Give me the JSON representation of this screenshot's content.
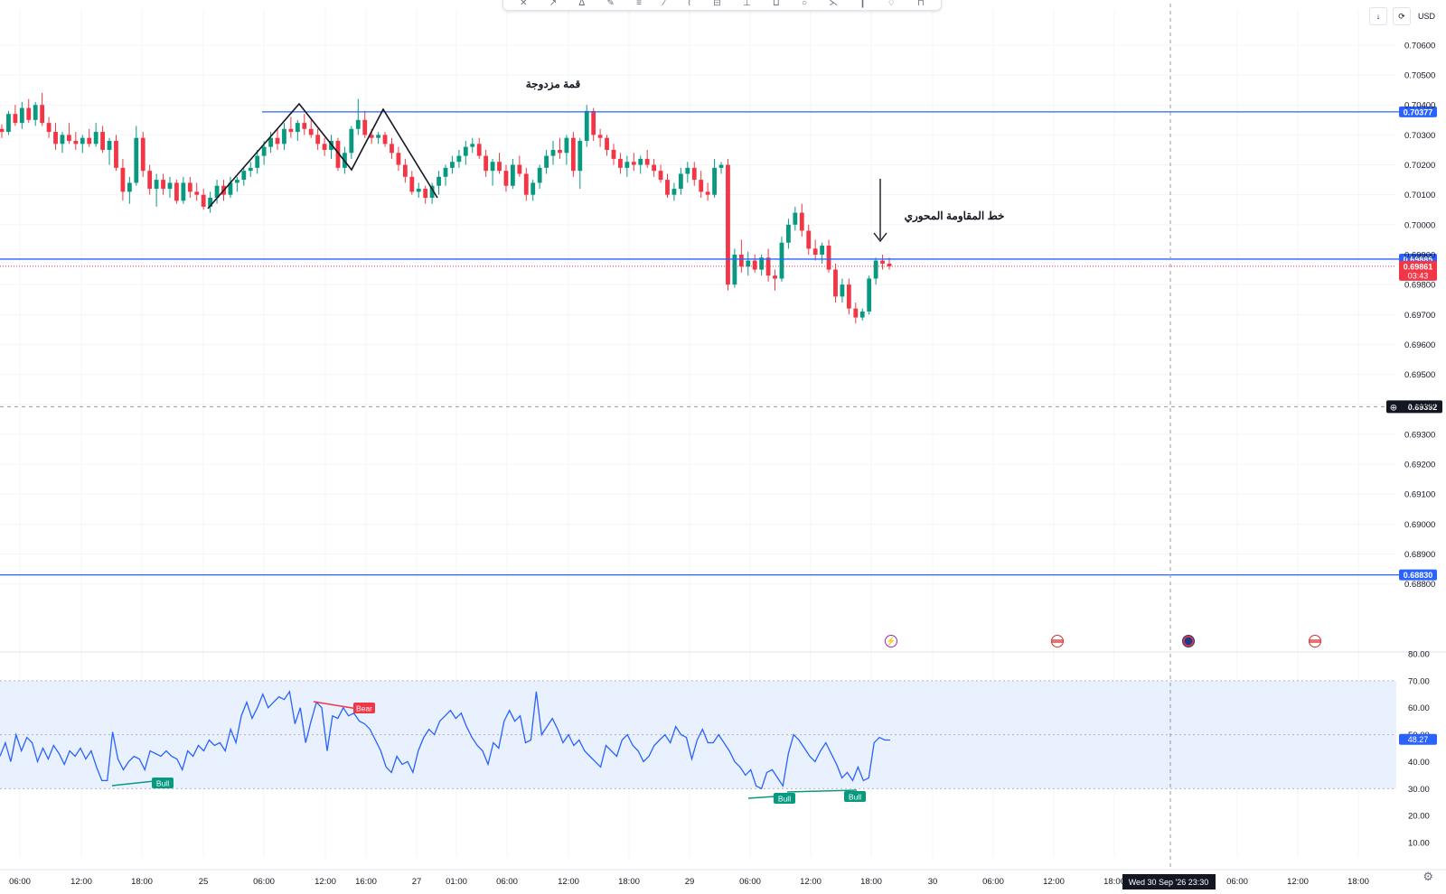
{
  "toolbar": {
    "tools": [
      "✕",
      "↗",
      "ᐃ",
      "✎",
      "≡",
      "⁄",
      "⌇",
      "⊟",
      "⊥",
      "⊔",
      "○",
      "⋋",
      "┃",
      "♢",
      "⊓"
    ]
  },
  "corner": {
    "download_label": "↓",
    "sync_label": "⟳",
    "currency_label": "USD"
  },
  "chart_data": {
    "type": "candlestick",
    "price_axis": {
      "ticks": [
        "0.70600",
        "0.70500",
        "0.70400",
        "0.70300",
        "0.70200",
        "0.70100",
        "0.70000",
        "0.69900",
        "0.69800",
        "0.69700",
        "0.69600",
        "0.69500",
        "0.69400",
        "0.69300",
        "0.69200",
        "0.69100",
        "0.69000",
        "0.68900",
        "0.68800"
      ],
      "ylim": [
        0.6877,
        0.7063
      ]
    },
    "time_axis": {
      "labels": [
        "06:00",
        "12:00",
        "18:00",
        "25",
        "06:00",
        "12:00",
        "16:00",
        "27",
        "01:00",
        "06:00",
        "12:00",
        "18:00",
        "29",
        "06:00",
        "12:00",
        "18:00",
        "30",
        "06:00",
        "12:00",
        "18:00",
        "06:00",
        "12:00",
        "18:00"
      ],
      "crosshair_label": "Wed 30 Sep '26   23:30"
    },
    "horizontal_lines": [
      {
        "price": 0.70377,
        "label": "0.70377",
        "color": "#2962ff"
      },
      {
        "price": 0.69885,
        "label": "0.69885",
        "color": "#2962ff"
      },
      {
        "price": 0.6883,
        "label": "0.68830",
        "color": "#2962ff"
      }
    ],
    "last_price": {
      "price": 0.69861,
      "label": "0.69861",
      "countdown": "03:43",
      "color": "#f23645"
    },
    "crosshair_price": {
      "price": 0.69392,
      "label": "0.69392"
    },
    "annotations": {
      "double_top": "قمة مزدوجة",
      "pivot_resistance": "خط المقاومة المحوري"
    },
    "candles": [
      [
        0.7032,
        0.70335,
        0.7029,
        0.7031
      ],
      [
        0.7031,
        0.7038,
        0.703,
        0.7037
      ],
      [
        0.7037,
        0.704,
        0.7033,
        0.7034
      ],
      [
        0.7034,
        0.7041,
        0.7032,
        0.7039
      ],
      [
        0.7039,
        0.7042,
        0.7034,
        0.7035
      ],
      [
        0.7035,
        0.7041,
        0.7033,
        0.704
      ],
      [
        0.704,
        0.7044,
        0.7033,
        0.7034
      ],
      [
        0.7034,
        0.7036,
        0.7029,
        0.7031
      ],
      [
        0.7031,
        0.7034,
        0.7025,
        0.7027
      ],
      [
        0.7027,
        0.7031,
        0.7024,
        0.703
      ],
      [
        0.703,
        0.7034,
        0.7027,
        0.7028
      ],
      [
        0.7028,
        0.7031,
        0.7025,
        0.7027
      ],
      [
        0.7027,
        0.703,
        0.7024,
        0.7029
      ],
      [
        0.7029,
        0.7032,
        0.7026,
        0.7027
      ],
      [
        0.7027,
        0.7034,
        0.7026,
        0.7031
      ],
      [
        0.7031,
        0.7033,
        0.7024,
        0.7025
      ],
      [
        0.7025,
        0.7029,
        0.702,
        0.7028
      ],
      [
        0.7028,
        0.703,
        0.7018,
        0.7019
      ],
      [
        0.7019,
        0.7022,
        0.7008,
        0.7011
      ],
      [
        0.7011,
        0.7016,
        0.7007,
        0.7014
      ],
      [
        0.7014,
        0.7033,
        0.7013,
        0.7029
      ],
      [
        0.7029,
        0.7031,
        0.7016,
        0.7018
      ],
      [
        0.7018,
        0.702,
        0.701,
        0.7012
      ],
      [
        0.7012,
        0.7017,
        0.7006,
        0.7015
      ],
      [
        0.7015,
        0.7017,
        0.701,
        0.7012
      ],
      [
        0.7012,
        0.7016,
        0.7009,
        0.7014
      ],
      [
        0.7014,
        0.7015,
        0.7007,
        0.7008
      ],
      [
        0.7008,
        0.7016,
        0.7007,
        0.7014
      ],
      [
        0.7014,
        0.7016,
        0.7009,
        0.7011
      ],
      [
        0.7011,
        0.7014,
        0.7008,
        0.701
      ],
      [
        0.701,
        0.7012,
        0.7005,
        0.7006
      ],
      [
        0.7006,
        0.7011,
        0.7004,
        0.7009
      ],
      [
        0.7009,
        0.7015,
        0.7007,
        0.7013
      ],
      [
        0.7013,
        0.7015,
        0.7008,
        0.701
      ],
      [
        0.701,
        0.7016,
        0.7009,
        0.7014
      ],
      [
        0.7014,
        0.7016,
        0.7011,
        0.7015
      ],
      [
        0.7015,
        0.7019,
        0.7013,
        0.7018
      ],
      [
        0.7018,
        0.7021,
        0.7016,
        0.7019
      ],
      [
        0.7019,
        0.7025,
        0.7017,
        0.7023
      ],
      [
        0.7023,
        0.7028,
        0.702,
        0.7026
      ],
      [
        0.7026,
        0.7031,
        0.7024,
        0.7029
      ],
      [
        0.7029,
        0.7032,
        0.7025,
        0.7027
      ],
      [
        0.7027,
        0.7034,
        0.7025,
        0.7032
      ],
      [
        0.7032,
        0.7036,
        0.7029,
        0.7031
      ],
      [
        0.7031,
        0.7035,
        0.7028,
        0.7034
      ],
      [
        0.7034,
        0.7037,
        0.703,
        0.7032
      ],
      [
        0.7032,
        0.7035,
        0.7029,
        0.703
      ],
      [
        0.703,
        0.7032,
        0.7025,
        0.7027
      ],
      [
        0.7027,
        0.7029,
        0.7023,
        0.7025
      ],
      [
        0.7025,
        0.703,
        0.7022,
        0.7028
      ],
      [
        0.7028,
        0.7029,
        0.7018,
        0.7019
      ],
      [
        0.7019,
        0.7026,
        0.7017,
        0.7024
      ],
      [
        0.7024,
        0.7033,
        0.7022,
        0.7032
      ],
      [
        0.7032,
        0.7042,
        0.703,
        0.7035
      ],
      [
        0.7035,
        0.7038,
        0.7029,
        0.703
      ],
      [
        0.703,
        0.7032,
        0.7027,
        0.7029
      ],
      [
        0.7029,
        0.7031,
        0.7027,
        0.703
      ],
      [
        0.703,
        0.7031,
        0.7026,
        0.7027
      ],
      [
        0.7027,
        0.7029,
        0.7022,
        0.7024
      ],
      [
        0.7024,
        0.7026,
        0.7018,
        0.702
      ],
      [
        0.702,
        0.7022,
        0.7014,
        0.7016
      ],
      [
        0.7016,
        0.7018,
        0.701,
        0.7011
      ],
      [
        0.7011,
        0.7014,
        0.7009,
        0.7012
      ],
      [
        0.7012,
        0.7013,
        0.7007,
        0.7009
      ],
      [
        0.7009,
        0.7014,
        0.7007,
        0.7013
      ],
      [
        0.7013,
        0.7018,
        0.701,
        0.7016
      ],
      [
        0.7016,
        0.702,
        0.7013,
        0.7019
      ],
      [
        0.7019,
        0.7023,
        0.7017,
        0.7021
      ],
      [
        0.7021,
        0.7025,
        0.7019,
        0.7023
      ],
      [
        0.7023,
        0.7028,
        0.702,
        0.7026
      ],
      [
        0.7026,
        0.7029,
        0.7024,
        0.7027
      ],
      [
        0.7027,
        0.7029,
        0.7022,
        0.7023
      ],
      [
        0.7023,
        0.7025,
        0.7016,
        0.7018
      ],
      [
        0.7018,
        0.7022,
        0.7013,
        0.7021
      ],
      [
        0.7021,
        0.7024,
        0.7017,
        0.7018
      ],
      [
        0.7018,
        0.702,
        0.7011,
        0.7013
      ],
      [
        0.7013,
        0.7022,
        0.7012,
        0.702
      ],
      [
        0.702,
        0.7023,
        0.7016,
        0.7017
      ],
      [
        0.7017,
        0.7019,
        0.7008,
        0.701
      ],
      [
        0.701,
        0.7015,
        0.7008,
        0.7014
      ],
      [
        0.7014,
        0.702,
        0.7012,
        0.7019
      ],
      [
        0.7019,
        0.7025,
        0.7017,
        0.7023
      ],
      [
        0.7023,
        0.7028,
        0.702,
        0.7025
      ],
      [
        0.7025,
        0.7029,
        0.7022,
        0.7024
      ],
      [
        0.7024,
        0.703,
        0.702,
        0.7029
      ],
      [
        0.7029,
        0.7031,
        0.7016,
        0.7018
      ],
      [
        0.7018,
        0.7029,
        0.7012,
        0.7028
      ],
      [
        0.7028,
        0.704,
        0.7026,
        0.7038
      ],
      [
        0.7038,
        0.7039,
        0.7028,
        0.703
      ],
      [
        0.703,
        0.7032,
        0.7026,
        0.7029
      ],
      [
        0.7029,
        0.703,
        0.7023,
        0.7025
      ],
      [
        0.7025,
        0.7027,
        0.702,
        0.7022
      ],
      [
        0.7022,
        0.7024,
        0.7017,
        0.7019
      ],
      [
        0.7019,
        0.7023,
        0.7016,
        0.7021
      ],
      [
        0.7021,
        0.7024,
        0.7018,
        0.702
      ],
      [
        0.702,
        0.7023,
        0.7017,
        0.7022
      ],
      [
        0.7022,
        0.7025,
        0.7019,
        0.702
      ],
      [
        0.702,
        0.7022,
        0.7016,
        0.7018
      ],
      [
        0.7018,
        0.702,
        0.7014,
        0.7015
      ],
      [
        0.7015,
        0.7017,
        0.7009,
        0.701
      ],
      [
        0.701,
        0.7014,
        0.7008,
        0.7012
      ],
      [
        0.7012,
        0.7019,
        0.701,
        0.7017
      ],
      [
        0.7017,
        0.7021,
        0.7014,
        0.7019
      ],
      [
        0.7019,
        0.7021,
        0.7013,
        0.7015
      ],
      [
        0.7015,
        0.7018,
        0.7009,
        0.7011
      ],
      [
        0.7011,
        0.7014,
        0.7008,
        0.701
      ],
      [
        0.701,
        0.7022,
        0.7009,
        0.7019
      ],
      [
        0.7019,
        0.7021,
        0.7017,
        0.702
      ],
      [
        0.702,
        0.7022,
        0.6978,
        0.698
      ],
      [
        0.698,
        0.6992,
        0.6979,
        0.699
      ],
      [
        0.699,
        0.6995,
        0.6984,
        0.6986
      ],
      [
        0.6986,
        0.6991,
        0.6983,
        0.6988
      ],
      [
        0.6988,
        0.699,
        0.6984,
        0.6985
      ],
      [
        0.6985,
        0.699,
        0.6983,
        0.6989
      ],
      [
        0.6989,
        0.6992,
        0.6981,
        0.6983
      ],
      [
        0.6983,
        0.6985,
        0.6978,
        0.6982
      ],
      [
        0.6982,
        0.6996,
        0.6981,
        0.6994
      ],
      [
        0.6994,
        0.7002,
        0.6992,
        0.7
      ],
      [
        0.7,
        0.7006,
        0.6998,
        0.7004
      ],
      [
        0.7004,
        0.7007,
        0.6996,
        0.6998
      ],
      [
        0.6998,
        0.7,
        0.699,
        0.6992
      ],
      [
        0.6992,
        0.6995,
        0.6988,
        0.699
      ],
      [
        0.699,
        0.6994,
        0.6987,
        0.6993
      ],
      [
        0.6993,
        0.6995,
        0.6984,
        0.6985
      ],
      [
        0.6985,
        0.6987,
        0.6974,
        0.6976
      ],
      [
        0.6976,
        0.6982,
        0.6974,
        0.698
      ],
      [
        0.698,
        0.6982,
        0.697,
        0.6972
      ],
      [
        0.6972,
        0.6974,
        0.6967,
        0.6969
      ],
      [
        0.6969,
        0.6972,
        0.6968,
        0.6971
      ],
      [
        0.6971,
        0.6983,
        0.697,
        0.6982
      ],
      [
        0.6982,
        0.6989,
        0.698,
        0.6988
      ],
      [
        0.6988,
        0.699,
        0.6985,
        0.6987
      ],
      [
        0.6987,
        0.6989,
        0.6985,
        0.69861
      ]
    ]
  },
  "indicator": {
    "type": "line",
    "yticks": [
      "80.00",
      "70.00",
      "60.00",
      "50.00",
      "40.00",
      "30.00",
      "20.00",
      "10.00"
    ],
    "ylim": [
      5,
      84
    ],
    "band": [
      30,
      70
    ],
    "midline": 50,
    "last_value_label": "48.27",
    "values": [
      42,
      47,
      40,
      50,
      44,
      49,
      47,
      40,
      45,
      41,
      46,
      43,
      39,
      44,
      42,
      45,
      41,
      44,
      38,
      33,
      33,
      51,
      41,
      37,
      40,
      42,
      41,
      37,
      44,
      43,
      42,
      44,
      42,
      41,
      37,
      44,
      42,
      46,
      44,
      48,
      46,
      47,
      44,
      52,
      47,
      57,
      62,
      56,
      60,
      65,
      60,
      62,
      64,
      63,
      66,
      54,
      60,
      47,
      55,
      62,
      60,
      44,
      57,
      56,
      60,
      57,
      58,
      55,
      54,
      52,
      48,
      44,
      38,
      36,
      42,
      39,
      40,
      36,
      44,
      49,
      52,
      50,
      55,
      57,
      59,
      56,
      58,
      53,
      49,
      46,
      44,
      39,
      47,
      45,
      55,
      59,
      55,
      57,
      47,
      48,
      66,
      50,
      53,
      56,
      52,
      47,
      50,
      46,
      48,
      44,
      42,
      40,
      38,
      46,
      44,
      42,
      48,
      50,
      46,
      44,
      40,
      42,
      46,
      48,
      50,
      47,
      53,
      50,
      49,
      41,
      48,
      52,
      47,
      47,
      50,
      47,
      44,
      40,
      38,
      35,
      37,
      31,
      30,
      36,
      37,
      34,
      31,
      43,
      50,
      48,
      45,
      42,
      40,
      44,
      47,
      43,
      39,
      34,
      36,
      33,
      38,
      33,
      34,
      47,
      49,
      48,
      48
    ],
    "divergences": [
      {
        "label": "Bull",
        "color": "#089981"
      },
      {
        "label": "Bear",
        "color": "#f23645"
      },
      {
        "label": "Bull",
        "color": "#089981"
      },
      {
        "label": "Bull",
        "color": "#089981"
      }
    ]
  },
  "events": [
    {
      "icon": "lightning-icon",
      "glyph": "⚡"
    },
    {
      "icon": "us-flag-icon",
      "glyph": ""
    },
    {
      "icon": "au-flag-icon",
      "glyph": ""
    },
    {
      "icon": "us-flag-icon",
      "glyph": ""
    }
  ],
  "settings_glyph": "⚙",
  "colors": {
    "up": "#089981",
    "down": "#f23645",
    "line": "#2962ff",
    "text": "#131722",
    "axis_text": "#131722"
  }
}
